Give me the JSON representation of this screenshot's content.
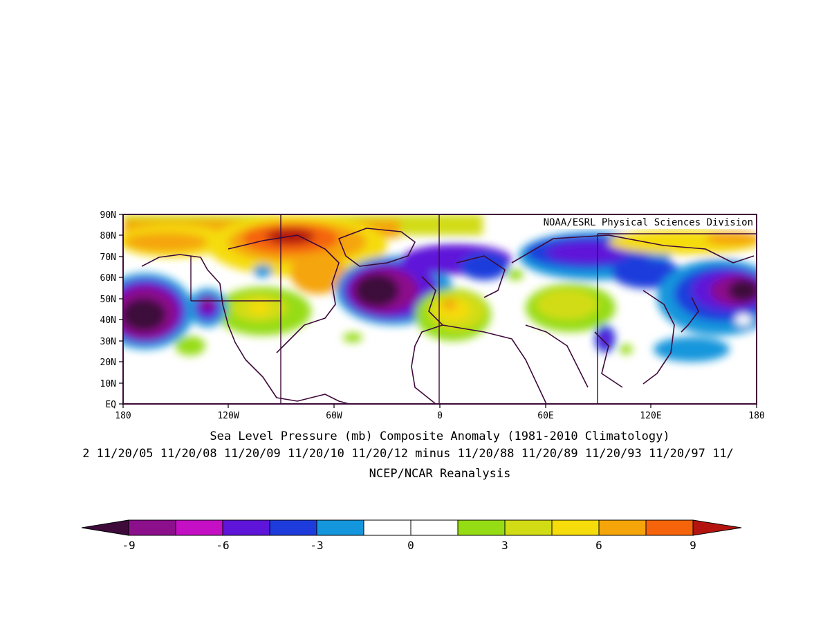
{
  "map": {
    "credit": "NOAA/ESRL Physical Sciences Division",
    "lat_labels": [
      "90N",
      "80N",
      "70N",
      "60N",
      "50N",
      "40N",
      "30N",
      "20N",
      "10N",
      "EQ"
    ],
    "lon_labels": [
      "180",
      "120W",
      "60W",
      "0",
      "60E",
      "120E",
      "180"
    ],
    "title_line1": "Sea Level Pressure (mb) Composite Anomaly (1981-2010 Climatology)",
    "title_line2": "2 11/20/05 11/20/08 11/20/09 11/20/10 11/20/12 minus 11/20/88 11/20/89 11/20/93 11/20/97 11/",
    "title_line3": "NCEP/NCAR Reanalysis"
  },
  "colorbar": {
    "tick_labels": [
      "-9",
      "-6",
      "-3",
      "0",
      "3",
      "6",
      "9"
    ],
    "colors": {
      "left_arrow": "#3d0a3a",
      "bins": [
        "#8c0f8c",
        "#c40fc4",
        "#5e14d9",
        "#1e3cdc",
        "#1496dc",
        "#ffffff",
        "#ffffff",
        "#96dc14",
        "#d2dc14",
        "#f5dc0a",
        "#f5a50a",
        "#f5640a"
      ],
      "right_arrow": "#b4140f"
    }
  }
}
